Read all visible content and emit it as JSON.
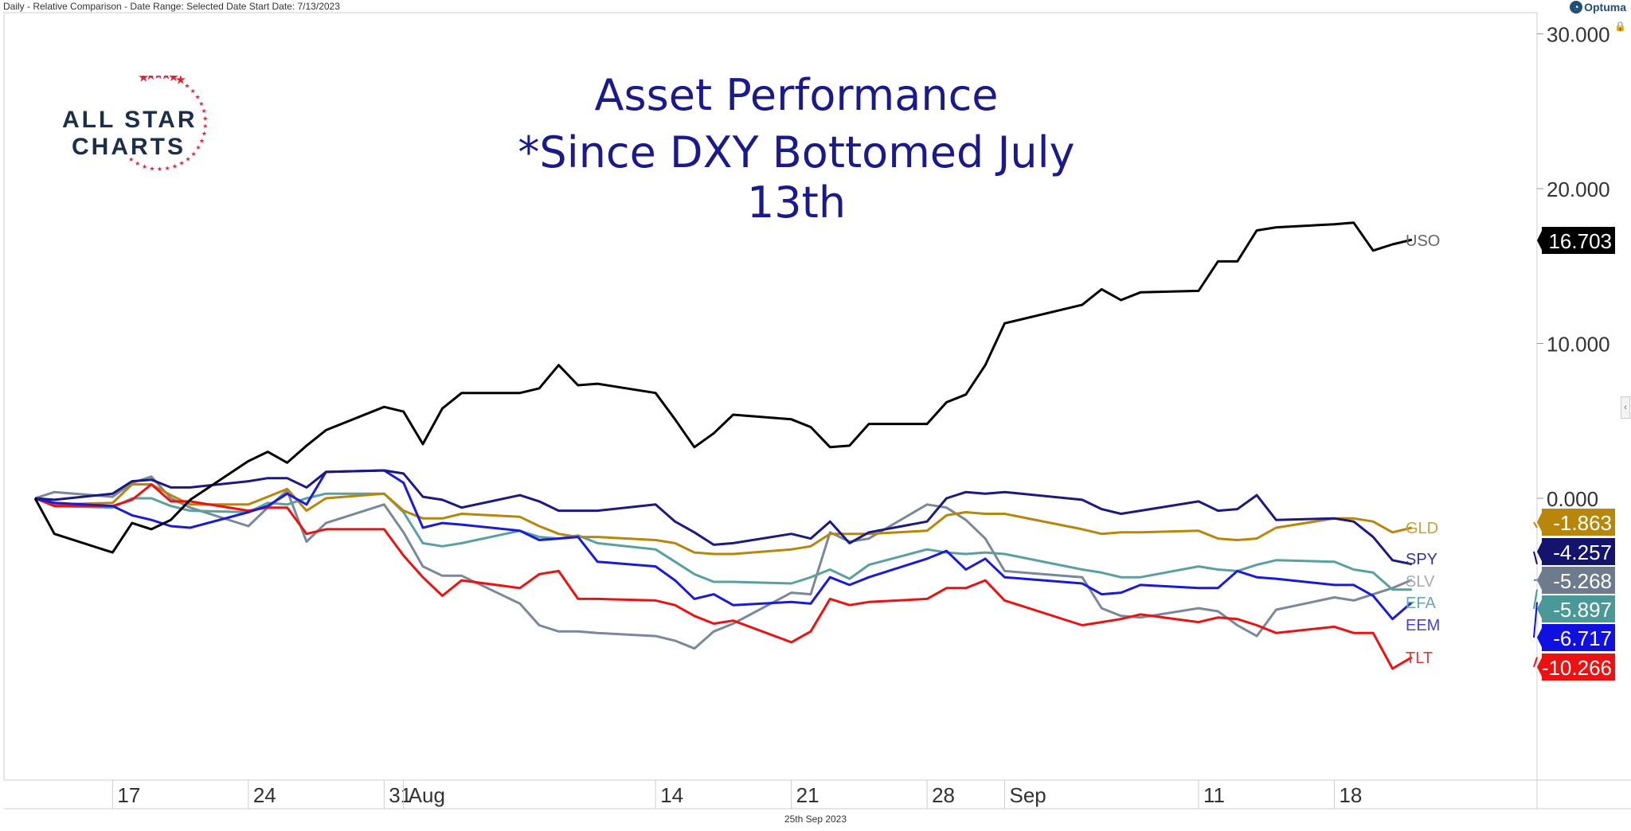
{
  "header": {
    "text": "Daily - Relative Comparison - Date Range: Selected Date  Start Date: 7/13/2023"
  },
  "brand": {
    "name": "Optuma",
    "icon": "optuma-logo-icon"
  },
  "footer": {
    "date_label": "25th Sep 2023"
  },
  "logo": {
    "line1": "ALL STAR",
    "line2": "CHARTS",
    "star_color": "#d8253a",
    "text_color": "#1c2e4a"
  },
  "chart_data": {
    "type": "line",
    "title": "Asset Performance",
    "subtitle": "*Since DXY Bottomed July 13th",
    "x_start": "2023-07-13",
    "x_end": "2023-09-22",
    "ylim": [
      -18,
      30
    ],
    "y_ticks": [
      "30.000",
      "20.000",
      "10.000",
      "0.000"
    ],
    "x_ticks": [
      {
        "date": "2023-07-17",
        "label": "17"
      },
      {
        "date": "2023-07-24",
        "label": "24"
      },
      {
        "date": "2023-07-31",
        "label": "31"
      },
      {
        "date": "2023-08-01",
        "label": "Aug"
      },
      {
        "date": "2023-08-14",
        "label": "14"
      },
      {
        "date": "2023-08-21",
        "label": "21"
      },
      {
        "date": "2023-08-28",
        "label": "28"
      },
      {
        "date": "2023-09-01",
        "label": "Sep"
      },
      {
        "date": "2023-09-11",
        "label": "11"
      },
      {
        "date": "2023-09-18",
        "label": "18"
      }
    ],
    "dates": [
      "2023-07-13",
      "2023-07-14",
      "2023-07-17",
      "2023-07-18",
      "2023-07-19",
      "2023-07-20",
      "2023-07-21",
      "2023-07-24",
      "2023-07-25",
      "2023-07-26",
      "2023-07-27",
      "2023-07-28",
      "2023-07-31",
      "2023-08-01",
      "2023-08-02",
      "2023-08-03",
      "2023-08-04",
      "2023-08-07",
      "2023-08-08",
      "2023-08-09",
      "2023-08-10",
      "2023-08-11",
      "2023-08-14",
      "2023-08-15",
      "2023-08-16",
      "2023-08-17",
      "2023-08-18",
      "2023-08-21",
      "2023-08-22",
      "2023-08-23",
      "2023-08-24",
      "2023-08-25",
      "2023-08-28",
      "2023-08-29",
      "2023-08-30",
      "2023-08-31",
      "2023-09-01",
      "2023-09-05",
      "2023-09-06",
      "2023-09-07",
      "2023-09-08",
      "2023-09-11",
      "2023-09-12",
      "2023-09-13",
      "2023-09-14",
      "2023-09-15",
      "2023-09-18",
      "2023-09-19",
      "2023-09-20",
      "2023-09-21",
      "2023-09-22"
    ],
    "series": [
      {
        "name": "USO",
        "color": "#000000",
        "label_color": "#666666",
        "value_label": "16.703",
        "badge_color": "#000000",
        "values": [
          0,
          -2.3,
          -3.5,
          -1.6,
          -2.0,
          -1.4,
          -0.1,
          2.4,
          3.0,
          2.3,
          3.4,
          4.4,
          5.9,
          5.6,
          3.5,
          5.8,
          6.8,
          6.8,
          7.1,
          8.6,
          7.3,
          7.4,
          6.8,
          5.1,
          3.3,
          4.2,
          5.4,
          5.1,
          4.6,
          3.3,
          3.4,
          4.8,
          4.8,
          6.2,
          6.7,
          8.6,
          11.3,
          12.5,
          13.5,
          12.8,
          13.3,
          13.4,
          15.3,
          15.3,
          17.3,
          17.5,
          17.7,
          17.8,
          16.0,
          16.4,
          16.7
        ]
      },
      {
        "name": "GLD",
        "color": "#b8860b",
        "label_color": "#c8a040",
        "value_label": "-1.863",
        "badge_color": "#b8860b",
        "values": [
          0,
          -0.4,
          -0.3,
          0.9,
          0.9,
          0.2,
          -0.4,
          -0.4,
          0.1,
          0.6,
          -0.8,
          0.0,
          0.3,
          -0.8,
          -1.3,
          -1.3,
          -1.0,
          -1.2,
          -1.8,
          -2.3,
          -2.5,
          -2.5,
          -2.7,
          -2.9,
          -3.5,
          -3.6,
          -3.6,
          -3.3,
          -3.1,
          -2.3,
          -2.3,
          -2.3,
          -2.1,
          -1.1,
          -0.9,
          -1.0,
          -1.0,
          -2.0,
          -2.3,
          -2.2,
          -2.2,
          -2.1,
          -2.6,
          -2.7,
          -2.6,
          -1.9,
          -1.3,
          -1.3,
          -1.5,
          -2.2,
          -1.9
        ]
      },
      {
        "name": "SPY",
        "color": "#1a1a80",
        "label_color": "#333399",
        "value_label": "-4.257",
        "badge_color": "#14146e",
        "values": [
          0,
          -0.1,
          0.3,
          1.1,
          1.2,
          0.7,
          0.7,
          1.1,
          1.3,
          1.3,
          0.7,
          1.7,
          1.8,
          1.6,
          0.1,
          -0.1,
          -0.6,
          0.2,
          -0.2,
          -0.8,
          -0.8,
          -0.8,
          -0.4,
          -1.5,
          -2.2,
          -3.0,
          -2.9,
          -2.3,
          -2.6,
          -1.5,
          -2.9,
          -2.2,
          -1.5,
          0.0,
          0.4,
          0.3,
          0.4,
          -0.1,
          -0.7,
          -1.0,
          -0.8,
          -0.2,
          -0.8,
          -0.7,
          0.2,
          -1.4,
          -1.3,
          -1.5,
          -2.5,
          -4.0,
          -4.257
        ]
      },
      {
        "name": "SLV",
        "color": "#7a8899",
        "label_color": "#aaaaaa",
        "value_label": "-5.268",
        "badge_color": "#6d7b8d",
        "values": [
          0,
          0.4,
          0.1,
          1.0,
          1.4,
          0.0,
          -0.6,
          -1.8,
          -0.6,
          0.5,
          -2.8,
          -1.6,
          -0.4,
          -2.2,
          -4.4,
          -5.0,
          -5.0,
          -6.8,
          -8.2,
          -8.6,
          -8.6,
          -8.7,
          -8.9,
          -9.2,
          -9.7,
          -8.6,
          -8.1,
          -6.1,
          -6.2,
          -2.2,
          -2.8,
          -2.6,
          -0.4,
          -0.6,
          -1.4,
          -2.6,
          -4.7,
          -5.1,
          -7.1,
          -7.6,
          -7.7,
          -7.1,
          -7.3,
          -8.2,
          -8.9,
          -7.2,
          -6.4,
          -6.6,
          -6.2,
          -5.8,
          -5.268
        ]
      },
      {
        "name": "EFA",
        "color": "#5aa0a0",
        "label_color": "#66aaaa",
        "value_label": "-5.897",
        "badge_color": "#4a9898",
        "values": [
          0,
          -0.5,
          -0.6,
          0.0,
          0.0,
          -0.5,
          -0.8,
          -0.9,
          -0.3,
          -0.4,
          0.0,
          0.3,
          0.3,
          -0.9,
          -2.9,
          -3.1,
          -2.9,
          -2.1,
          -2.5,
          -2.6,
          -2.4,
          -2.9,
          -3.3,
          -4.1,
          -4.9,
          -5.4,
          -5.4,
          -5.5,
          -5.1,
          -4.6,
          -5.2,
          -4.3,
          -3.3,
          -3.5,
          -3.6,
          -3.5,
          -3.6,
          -4.6,
          -4.8,
          -5.1,
          -5.1,
          -4.4,
          -4.6,
          -4.7,
          -4.3,
          -4.0,
          -4.1,
          -4.6,
          -4.8,
          -5.9,
          -5.897
        ]
      },
      {
        "name": "EEM",
        "color": "#1a1add",
        "label_color": "#4444cc",
        "value_label": "-6.717",
        "badge_color": "#1010e0",
        "values": [
          0,
          -0.3,
          -0.5,
          -1.1,
          -1.4,
          -1.8,
          -1.9,
          -0.9,
          -0.5,
          0.3,
          -0.4,
          1.7,
          1.8,
          1.0,
          -1.9,
          -1.6,
          -1.7,
          -2.1,
          -2.7,
          -2.6,
          -2.5,
          -4.1,
          -4.4,
          -5.3,
          -6.5,
          -6.2,
          -6.9,
          -6.7,
          -6.8,
          -5.1,
          -5.6,
          -5.1,
          -3.9,
          -3.4,
          -4.6,
          -3.9,
          -5.1,
          -5.5,
          -6.2,
          -6.1,
          -5.6,
          -5.8,
          -5.8,
          -4.7,
          -5.1,
          -5.2,
          -5.6,
          -5.6,
          -6.3,
          -7.8,
          -6.717
        ]
      },
      {
        "name": "TLT",
        "color": "#ee1111",
        "label_color": "#ee3333",
        "value_label": "-10.266",
        "badge_color": "#ee1111",
        "values": [
          0,
          -0.5,
          -0.5,
          -0.1,
          0.9,
          -0.2,
          -0.2,
          -0.8,
          -0.6,
          -0.6,
          -2.3,
          -2.0,
          -2.0,
          -3.7,
          -5.1,
          -6.3,
          -5.3,
          -5.8,
          -4.9,
          -4.7,
          -6.5,
          -6.5,
          -6.6,
          -6.9,
          -7.6,
          -8.1,
          -7.9,
          -9.3,
          -8.6,
          -6.5,
          -6.9,
          -6.7,
          -6.5,
          -5.8,
          -5.8,
          -5.3,
          -6.6,
          -8.2,
          -8.0,
          -7.8,
          -7.5,
          -8.0,
          -7.7,
          -7.8,
          -8.2,
          -8.7,
          -8.3,
          -8.7,
          -8.7,
          -11.0,
          -10.266
        ]
      }
    ]
  }
}
